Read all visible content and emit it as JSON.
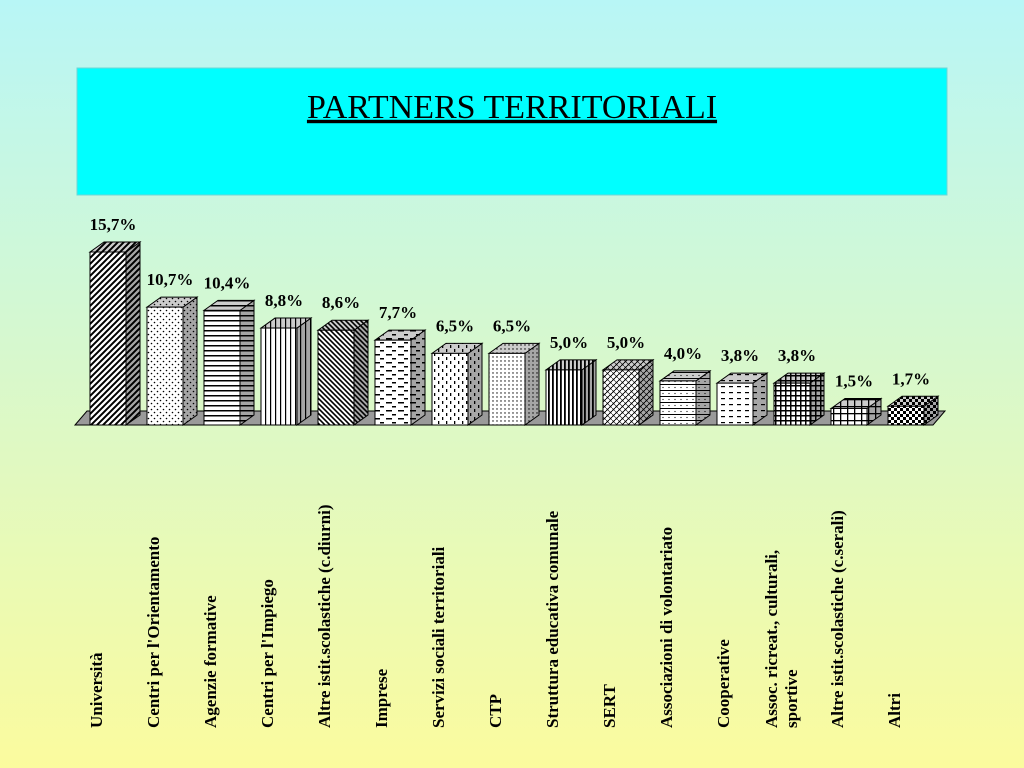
{
  "chart_data": {
    "type": "bar",
    "title": "PARTNERS TERRITORIALI",
    "categories": [
      "Università",
      "Centri per l'Orientamento",
      "Agenzie formative",
      "Centri per l'Impiego",
      "Altre istit.scolastiche (c.diurni)",
      "Imprese",
      "Servizi sociali territoriali",
      "CTP",
      "Struttura educativa comunale",
      "SERT",
      "Associazioni di volontariato",
      "Cooperative",
      "Assoc. ricreat., culturali,\nsportive",
      "Altre istit.scolastiche (c.serali)",
      "Altri"
    ],
    "values": [
      15.7,
      10.7,
      10.4,
      8.8,
      8.6,
      7.7,
      6.5,
      6.5,
      5.0,
      5.0,
      4.0,
      3.8,
      3.8,
      1.5,
      1.7
    ],
    "value_labels": [
      "15,7%",
      "10,7%",
      "10,4%",
      "8,8%",
      "8,6%",
      "7,7%",
      "6,5%",
      "6,5%",
      "5,0%",
      "5,0%",
      "4,0%",
      "3,8%",
      "3,8%",
      "1,5%",
      "1,7%"
    ],
    "color": "#000000"
  }
}
